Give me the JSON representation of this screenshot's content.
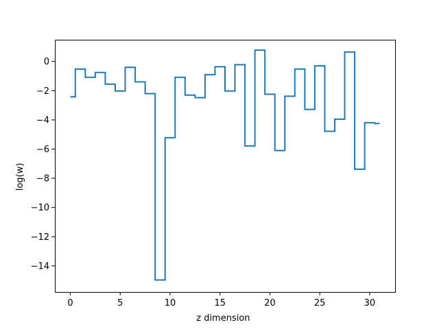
{
  "chart_data": {
    "type": "line",
    "drawstyle": "steps-mid",
    "title": "",
    "xlabel": "z dimension",
    "ylabel": "log(w)",
    "xlim": [
      -1.55,
      32.55
    ],
    "ylim": [
      -15.79,
      1.49
    ],
    "grid": false,
    "xticks": [
      0,
      5,
      10,
      15,
      20,
      25,
      30
    ],
    "yticks": [
      0,
      -2,
      -4,
      -6,
      -8,
      -10,
      -12,
      -14
    ],
    "series": [
      {
        "color": "#1f77b4",
        "x": [
          0,
          1,
          2,
          3,
          4,
          5,
          6,
          7,
          8,
          9,
          10,
          11,
          12,
          13,
          14,
          15,
          16,
          17,
          18,
          19,
          20,
          21,
          22,
          23,
          24,
          25,
          26,
          27,
          28,
          29,
          30,
          31
        ],
        "y": [
          -2.42,
          -0.52,
          -1.08,
          -0.75,
          -1.55,
          -2.02,
          -0.4,
          -1.4,
          -2.2,
          -14.97,
          -5.22,
          -1.08,
          -2.3,
          -2.48,
          -0.9,
          -0.36,
          -2.02,
          -0.22,
          -5.78,
          0.78,
          -2.24,
          -6.1,
          -2.38,
          -0.52,
          -3.28,
          -0.3,
          -4.78,
          -3.95,
          0.65,
          -7.38,
          -4.2,
          -4.25
        ]
      }
    ]
  }
}
